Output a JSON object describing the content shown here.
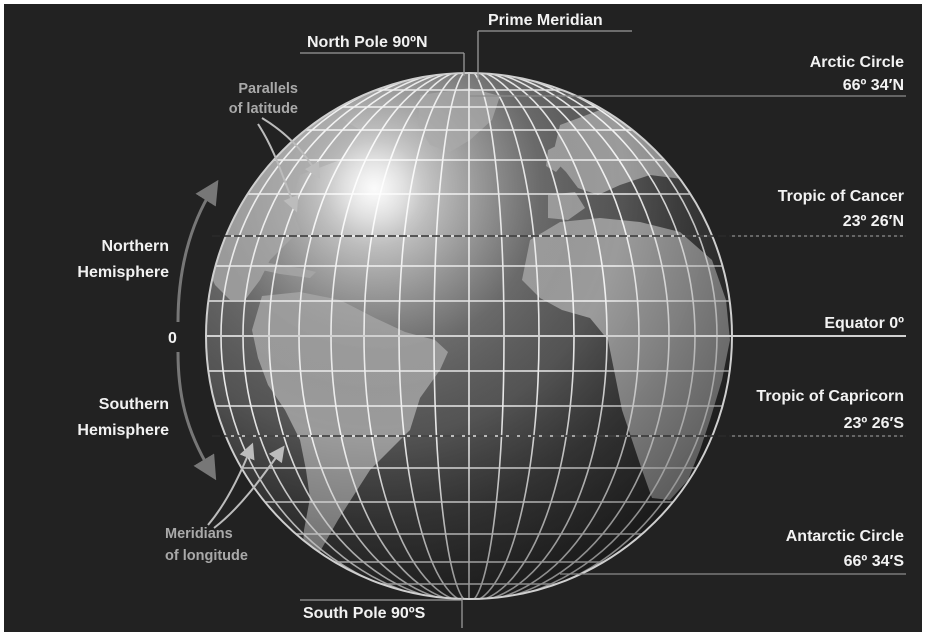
{
  "labels": {
    "prime_meridian": "Prime Meridian",
    "north_pole": "North Pole 90ºN",
    "south_pole": "South Pole 90ºS",
    "parallels_line1": "Parallels",
    "parallels_line2": "of latitude",
    "meridians_line1": "Meridians",
    "meridians_line2": "of longitude",
    "northern_line1": "Northern",
    "northern_line2": "Hemisphere",
    "southern_line1": "Southern",
    "southern_line2": "Hemisphere",
    "zero": "0",
    "arctic_name": "Arctic Circle",
    "arctic_value": "66º 34′N",
    "cancer_name": "Tropic of Cancer",
    "cancer_value": "23º 26′N",
    "equator": "Equator 0º",
    "capricorn_name": "Tropic of Capricorn",
    "capricorn_value": "23º 26′S",
    "antarctic_name": "Antarctic Circle",
    "antarctic_value": "66º 34′S"
  },
  "colors": {
    "background": "#222222",
    "frame": "#ffffff",
    "grid": "#ffffff",
    "land": "#a2a2a2",
    "ocean": "#4a4a4a",
    "leader_lines": "#9a9a9a"
  }
}
